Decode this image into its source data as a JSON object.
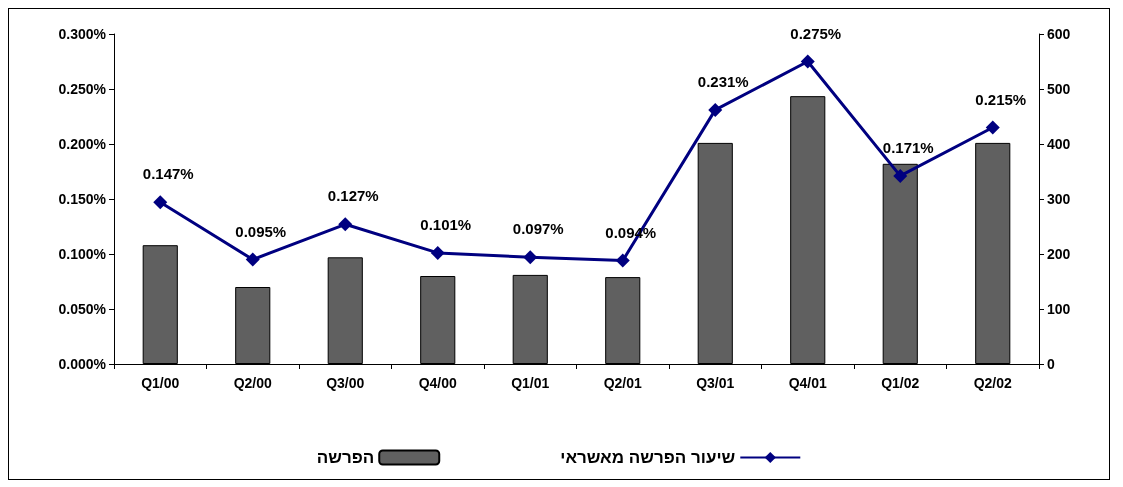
{
  "chart_data": {
    "type": "bar",
    "categories": [
      "Q1/00",
      "Q2/00",
      "Q3/00",
      "Q4/00",
      "Q1/01",
      "Q2/01",
      "Q3/01",
      "Q4/01",
      "Q1/02",
      "Q2/02"
    ],
    "series": [
      {
        "name": "הפרשה",
        "axis": "y2",
        "color": "#606060",
        "values": [
          216,
          140,
          194,
          160,
          162,
          158,
          402,
          487,
          364,
          402
        ]
      },
      {
        "name": "שיעור הפרשה מאשראי",
        "type": "line",
        "color": "#000080",
        "marker": "diamond",
        "values": [
          0.147,
          0.095,
          0.127,
          0.101,
          0.097,
          0.094,
          0.231,
          0.275,
          0.171,
          0.215
        ],
        "value_labels": [
          "0.147%",
          "0.095%",
          "0.127%",
          "0.101%",
          "0.097%",
          "0.094%",
          "0.231%",
          "0.275%",
          "0.171%",
          "0.215%"
        ]
      }
    ],
    "ylim": [
      0,
      0.3
    ],
    "yticks": [
      {
        "value": 0,
        "label": "0.000%"
      },
      {
        "value": 0.05,
        "label": "0.050%"
      },
      {
        "value": 0.1,
        "label": "0.100%"
      },
      {
        "value": 0.15,
        "label": "0.150%"
      },
      {
        "value": 0.2,
        "label": "0.200%"
      },
      {
        "value": 0.25,
        "label": "0.250%"
      },
      {
        "value": 0.3,
        "label": "0.300%"
      }
    ],
    "y2lim": [
      0,
      600
    ],
    "y2ticks": [
      0,
      100,
      200,
      300,
      400,
      500,
      600
    ],
    "grid": false,
    "legend": "bottom"
  }
}
